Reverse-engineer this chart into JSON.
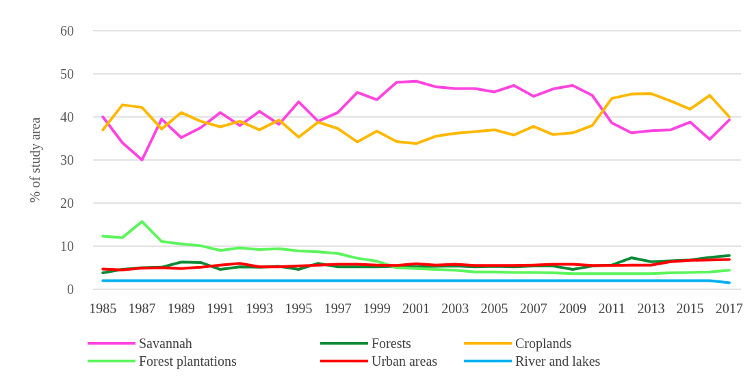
{
  "chart_data": {
    "type": "line",
    "ylabel": "% of study area",
    "x": [
      1985,
      1986,
      1987,
      1988,
      1989,
      1990,
      1991,
      1992,
      1993,
      1994,
      1995,
      1996,
      1997,
      1998,
      1999,
      2000,
      2001,
      2002,
      2003,
      2004,
      2005,
      2006,
      2007,
      2008,
      2009,
      2010,
      2011,
      2012,
      2013,
      2014,
      2015,
      2016,
      2017
    ],
    "xlim": [
      1984.5,
      2017.6
    ],
    "xticks": [
      1985,
      1987,
      1989,
      1991,
      1993,
      1995,
      1997,
      1999,
      2001,
      2003,
      2005,
      2007,
      2009,
      2011,
      2013,
      2015,
      2017
    ],
    "ylim": [
      0,
      60
    ],
    "yticks": [
      0,
      10,
      20,
      30,
      40,
      50,
      60
    ],
    "grid": "y",
    "legend": "bottom",
    "marker": "none",
    "line_style": "solid",
    "series": [
      {
        "name": "Savannah",
        "color": "#ff44e0",
        "values": [
          40,
          34,
          30,
          39.5,
          35.2,
          37.5,
          41,
          38,
          41.3,
          38.3,
          43.5,
          39,
          41,
          45.7,
          44,
          48,
          48.3,
          47,
          46.6,
          46.6,
          45.8,
          47.3,
          44.8,
          46.5,
          47.3,
          45,
          38.6,
          36.3,
          36.8,
          37,
          38.8,
          34.8,
          39.3
        ]
      },
      {
        "name": "Forests",
        "color": "#0d8a35",
        "values": [
          3.8,
          4.6,
          5,
          5.1,
          6.3,
          6.2,
          4.6,
          5.2,
          5.1,
          5.3,
          4.6,
          6,
          5.2,
          5.2,
          5.2,
          5.3,
          5.2,
          5.3,
          5.4,
          5.2,
          5.3,
          5.2,
          5.4,
          5.4,
          4.6,
          5.4,
          5.6,
          7.3,
          6.4,
          6.6,
          6.8,
          7.4,
          7.8
        ]
      },
      {
        "name": "Croplands",
        "color": "#ffb800",
        "values": [
          37,
          42.8,
          42.2,
          37.2,
          41,
          39,
          37.7,
          39,
          37,
          39.3,
          35.3,
          38.8,
          37.3,
          34.2,
          36.7,
          34.3,
          33.8,
          35.5,
          36.2,
          36.6,
          37,
          35.8,
          37.8,
          35.9,
          36.3,
          38,
          44.3,
          45.3,
          45.4,
          43.7,
          41.8,
          45,
          40
        ]
      },
      {
        "name": "Forest plantations",
        "color": "#5cf55c",
        "values": [
          12.3,
          12,
          15.7,
          11.1,
          10.5,
          10.1,
          9,
          9.6,
          9.2,
          9.4,
          8.9,
          8.7,
          8.3,
          7.2,
          6.5,
          5,
          4.8,
          4.6,
          4.4,
          4,
          4,
          3.9,
          3.9,
          3.8,
          3.6,
          3.6,
          3.6,
          3.6,
          3.6,
          3.8,
          3.9,
          4,
          4.4
        ]
      },
      {
        "name": "Urban areas",
        "color": "#ff0000",
        "values": [
          4.7,
          4.5,
          4.9,
          5,
          4.8,
          5.1,
          5.6,
          6,
          5.2,
          5.2,
          5.4,
          5.6,
          5.8,
          5.8,
          5.6,
          5.5,
          5.9,
          5.6,
          5.8,
          5.5,
          5.5,
          5.5,
          5.6,
          5.8,
          5.8,
          5.5,
          5.5,
          5.6,
          5.6,
          6.4,
          6.7,
          6.8,
          6.9
        ]
      },
      {
        "name": "River and lakes",
        "color": "#00b0f0",
        "values": [
          2,
          2,
          2,
          2,
          2,
          2,
          2,
          2,
          2,
          2,
          2,
          2,
          2,
          2,
          2,
          2,
          2,
          2,
          2,
          2,
          2,
          2,
          2,
          2,
          2,
          2,
          2,
          2,
          2,
          2,
          2,
          2,
          1.5
        ]
      }
    ]
  }
}
